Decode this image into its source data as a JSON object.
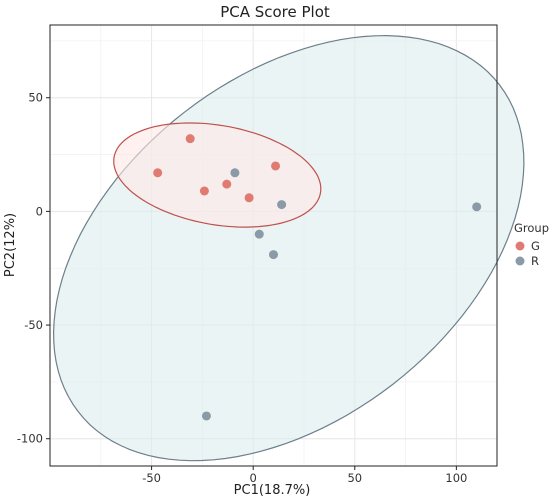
{
  "chart_data": {
    "type": "scatter",
    "title": "PCA Score Plot",
    "xlabel": "PC1(18.7%)",
    "ylabel": "PC2(12%)",
    "xlim": [
      -100,
      120
    ],
    "ylim": [
      -112,
      82
    ],
    "xticks": [
      -50,
      0,
      50,
      100
    ],
    "yticks": [
      -100,
      -50,
      0,
      50
    ],
    "grid": true,
    "legend": {
      "title": "Group",
      "position": "right"
    },
    "series": [
      {
        "name": "G",
        "color": "#e07b72",
        "ellipse_color": "#c0504d",
        "ellipse_fill": "#fde8e6",
        "points": [
          {
            "x": -47,
            "y": 17
          },
          {
            "x": -31,
            "y": 32
          },
          {
            "x": -24,
            "y": 9
          },
          {
            "x": -13,
            "y": 12
          },
          {
            "x": -2,
            "y": 6
          },
          {
            "x": 11,
            "y": 20
          }
        ]
      },
      {
        "name": "R",
        "color": "#8a9aa6",
        "ellipse_color": "#6d7f8c",
        "ellipse_fill": "#dcecec",
        "points": [
          {
            "x": -9,
            "y": 17
          },
          {
            "x": 14,
            "y": 3
          },
          {
            "x": 3,
            "y": -10
          },
          {
            "x": 10,
            "y": -19
          },
          {
            "x": 110,
            "y": 2
          },
          {
            "x": -23,
            "y": -90
          }
        ]
      }
    ]
  }
}
